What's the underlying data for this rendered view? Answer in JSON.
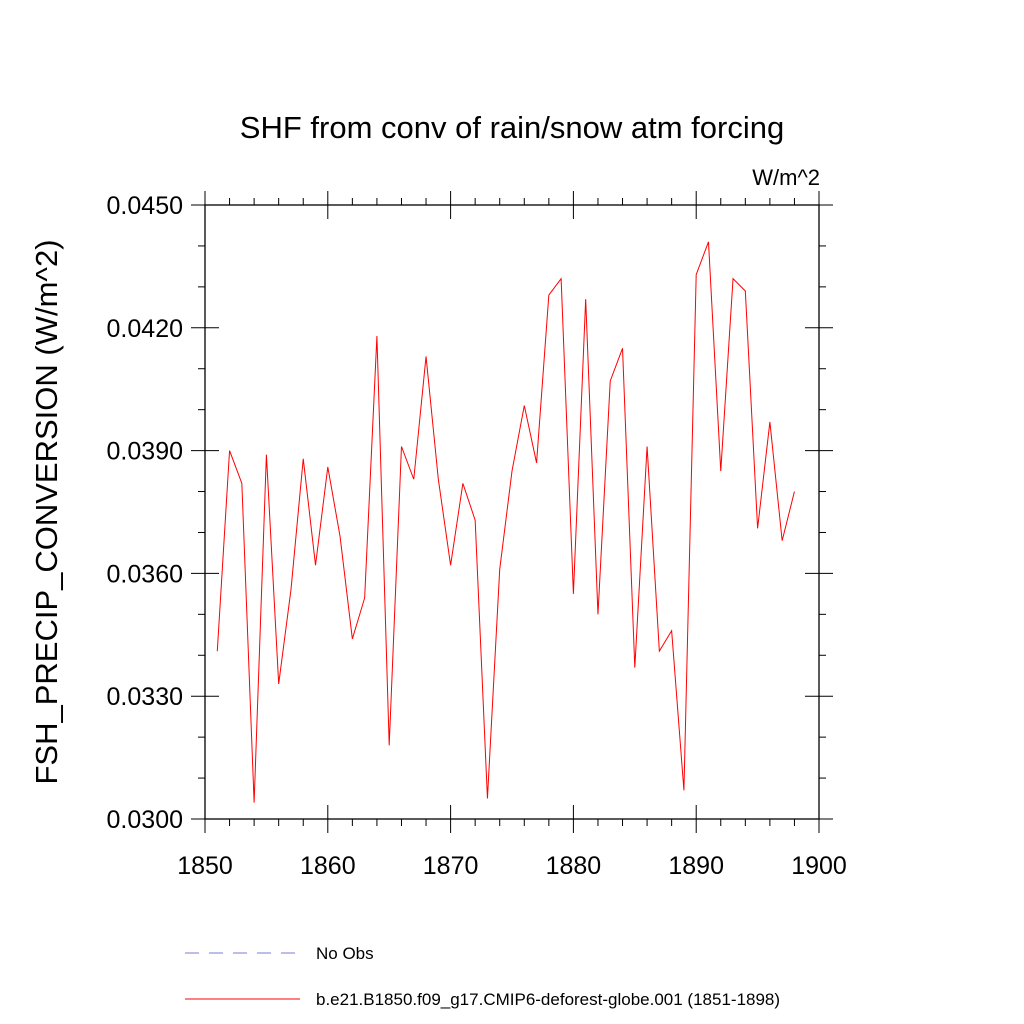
{
  "chart_data": {
    "type": "line",
    "title": "SHF from conv of rain/snow atm forcing",
    "units_label": "W/m^2",
    "ylabel": "FSH_PRECIP_CONVERSION  (W/m^2)",
    "xlabel": "",
    "xlim": [
      1850,
      1900
    ],
    "ylim": [
      0.03,
      0.045
    ],
    "x_ticks": [
      1850,
      1860,
      1870,
      1880,
      1890,
      1900
    ],
    "x_tick_labels": [
      "1850",
      "1860",
      "1870",
      "1880",
      "1890",
      "1900"
    ],
    "y_ticks": [
      0.03,
      0.033,
      0.036,
      0.039,
      0.042,
      0.045
    ],
    "y_tick_labels": [
      "0.0300",
      "0.0330",
      "0.0360",
      "0.0390",
      "0.0420",
      "0.0450"
    ],
    "legend_placement": "bottom",
    "series": [
      {
        "name": "No Obs",
        "color": "#7b7bd6",
        "dash": "dashed",
        "x": [],
        "values": []
      },
      {
        "name": "b.e21.B1850.f09_g17.CMIP6-deforest-globe.001 (1851-1898)",
        "color": "#ff0000",
        "dash": "solid",
        "x": [
          1851,
          1852,
          1853,
          1854,
          1855,
          1856,
          1857,
          1858,
          1859,
          1860,
          1861,
          1862,
          1863,
          1864,
          1865,
          1866,
          1867,
          1868,
          1869,
          1870,
          1871,
          1872,
          1873,
          1874,
          1875,
          1876,
          1877,
          1878,
          1879,
          1880,
          1881,
          1882,
          1883,
          1884,
          1885,
          1886,
          1887,
          1888,
          1889,
          1890,
          1891,
          1892,
          1893,
          1894,
          1895,
          1896,
          1897,
          1898
        ],
        "values": [
          0.0341,
          0.039,
          0.0382,
          0.0304,
          0.0389,
          0.0333,
          0.0356,
          0.0388,
          0.0362,
          0.0386,
          0.0369,
          0.0344,
          0.0354,
          0.0418,
          0.0318,
          0.0391,
          0.0383,
          0.0413,
          0.0383,
          0.0362,
          0.0382,
          0.0373,
          0.0305,
          0.0361,
          0.0385,
          0.0401,
          0.0387,
          0.0428,
          0.0432,
          0.0355,
          0.0427,
          0.035,
          0.0407,
          0.0415,
          0.0337,
          0.0391,
          0.0341,
          0.0346,
          0.0307,
          0.0433,
          0.0441,
          0.0385,
          0.0432,
          0.0429,
          0.0371,
          0.0397,
          0.0368,
          0.038
        ]
      }
    ]
  }
}
